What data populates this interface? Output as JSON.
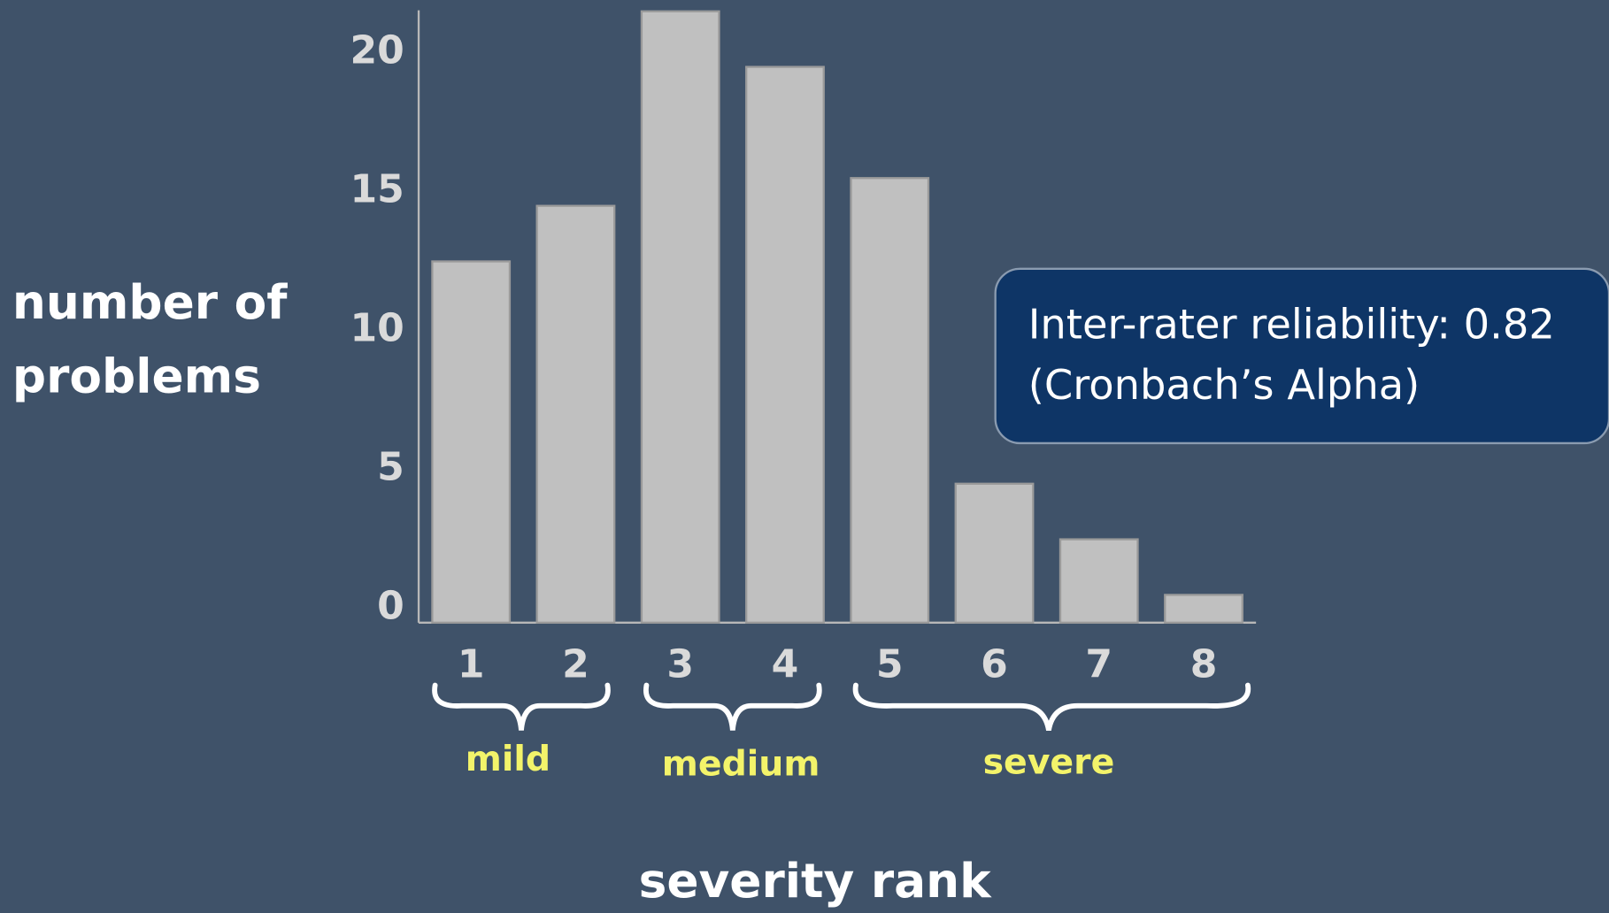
{
  "chart_data": {
    "type": "bar",
    "y_label_lines": [
      "number of",
      "problems"
    ],
    "x_label": "severity rank",
    "categories": [
      "1",
      "2",
      "3",
      "4",
      "5",
      "6",
      "7",
      "8"
    ],
    "values": [
      13,
      15,
      22,
      20,
      16,
      5,
      3,
      1
    ],
    "color": "#c0c0c0",
    "ylim": [
      0,
      22
    ],
    "yticks": [
      0,
      5,
      10,
      15,
      20
    ],
    "grid": false,
    "groups": [
      "mild",
      "medium",
      "severe"
    ],
    "annotation": [
      "Inter-rater reliability: 0.82",
      "(Cronbach’s Alpha)"
    ]
  }
}
